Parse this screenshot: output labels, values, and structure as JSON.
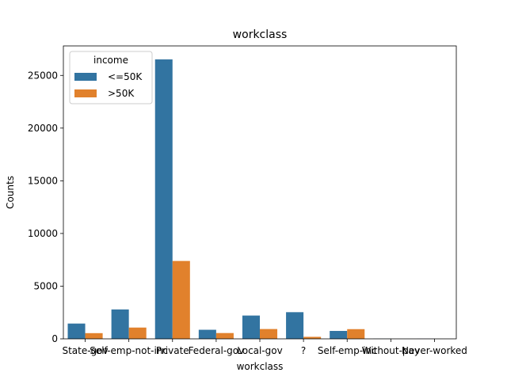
{
  "chart_data": {
    "type": "bar",
    "title": "workclass",
    "xlabel": "workclass",
    "ylabel": "Counts",
    "categories": [
      "State-gov",
      "Self-emp-not-inc",
      "Private",
      "Federal-gov",
      "Local-gov",
      "?",
      "Self-emp-inc",
      "Without-pay",
      "Never-worked"
    ],
    "series": [
      {
        "name": "<=50K",
        "values": [
          1450,
          2790,
          26520,
          860,
          2210,
          2530,
          750,
          14,
          7
        ]
      },
      {
        "name": ">50K",
        "values": [
          540,
          1070,
          7390,
          550,
          930,
          190,
          920,
          0,
          0
        ]
      }
    ],
    "ylim": [
      0,
      27800
    ],
    "yticks": [
      0,
      5000,
      10000,
      15000,
      20000,
      25000
    ],
    "grid": false,
    "legend": {
      "title": "income",
      "position": "top-left"
    },
    "colors": [
      "#3274a1",
      "#e1812c"
    ]
  }
}
